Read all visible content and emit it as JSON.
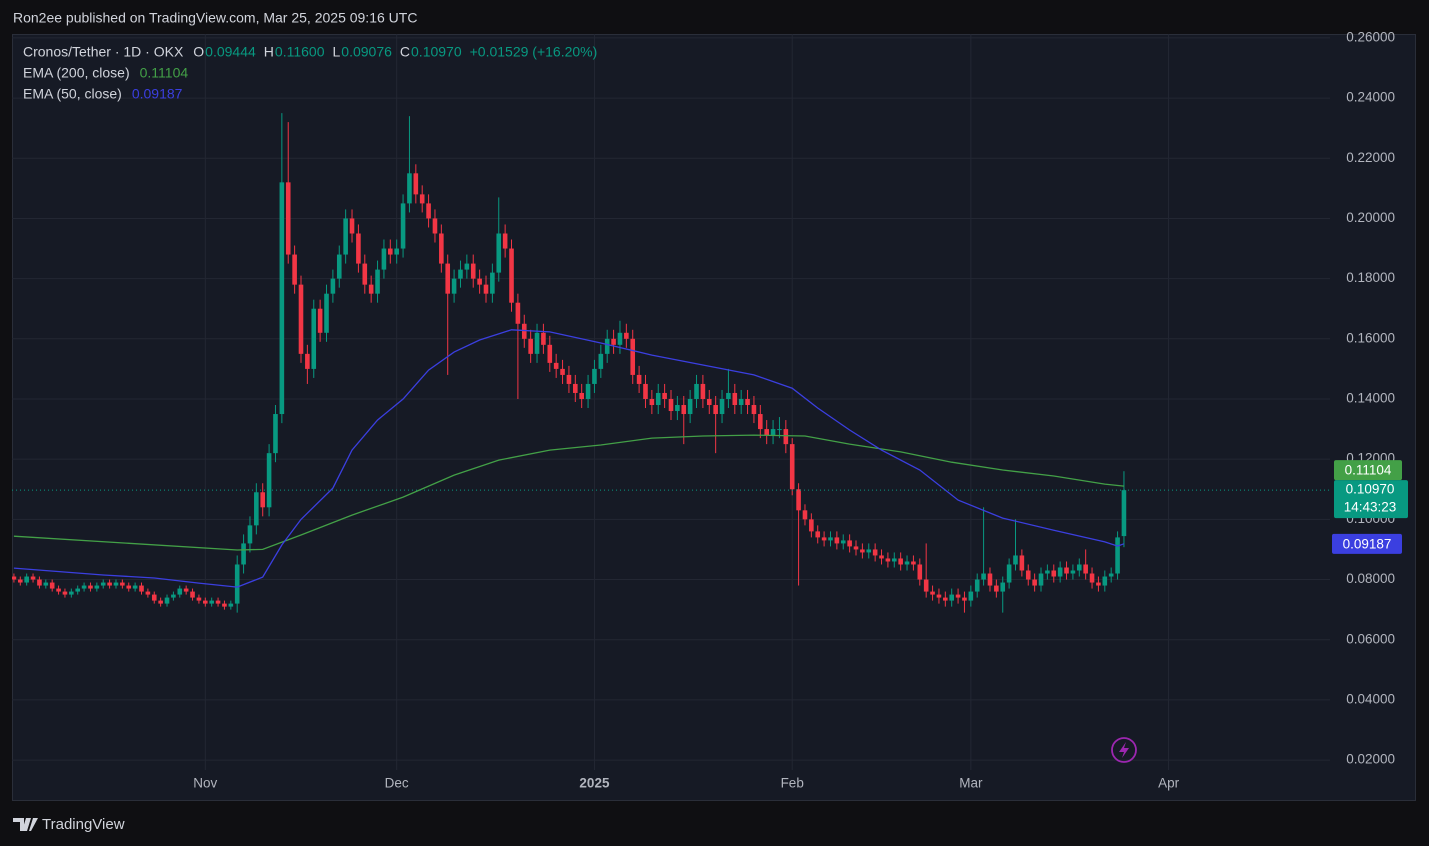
{
  "header": {
    "publisher": "Ron2ee published on TradingView.com, Mar 25, 2025 09:16 UTC"
  },
  "footer": {
    "brand": "TradingView"
  },
  "chart_data": {
    "type": "candlestick",
    "series": [
      {
        "name": "Cronos/Tether · 1D · OKX",
        "up_color": "#089981",
        "down_color": "#f23645",
        "open": [
          0.081,
          0.08,
          0.079,
          0.081,
          0.08,
          0.078,
          0.079,
          0.077,
          0.076,
          0.075,
          0.076,
          0.077,
          0.078,
          0.077,
          0.078,
          0.079,
          0.078,
          0.079,
          0.078,
          0.077,
          0.078,
          0.076,
          0.075,
          0.073,
          0.072,
          0.074,
          0.075,
          0.077,
          0.076,
          0.074,
          0.073,
          0.072,
          0.073,
          0.072,
          0.071,
          0.072,
          0.085,
          0.092,
          0.098,
          0.109,
          0.104,
          0.122,
          0.135,
          0.212,
          0.188,
          0.178,
          0.155,
          0.15,
          0.17,
          0.162,
          0.175,
          0.18,
          0.188,
          0.2,
          0.195,
          0.185,
          0.178,
          0.175,
          0.183,
          0.19,
          0.188,
          0.19,
          0.205,
          0.215,
          0.208,
          0.205,
          0.2,
          0.195,
          0.185,
          0.175,
          0.18,
          0.183,
          0.185,
          0.18,
          0.178,
          0.175,
          0.182,
          0.195,
          0.19,
          0.172,
          0.165,
          0.16,
          0.155,
          0.162,
          0.158,
          0.152,
          0.15,
          0.148,
          0.145,
          0.142,
          0.14,
          0.145,
          0.15,
          0.155,
          0.16,
          0.158,
          0.162,
          0.16,
          0.148,
          0.145,
          0.14,
          0.138,
          0.142,
          0.14,
          0.136,
          0.138,
          0.135,
          0.14,
          0.145,
          0.14,
          0.138,
          0.135,
          0.14,
          0.142,
          0.138,
          0.14,
          0.138,
          0.135,
          0.13,
          0.128,
          0.13,
          0.13,
          0.125,
          0.11,
          0.103,
          0.1,
          0.096,
          0.094,
          0.093,
          0.094,
          0.092,
          0.093,
          0.091,
          0.09,
          0.089,
          0.09,
          0.088,
          0.087,
          0.086,
          0.087,
          0.085,
          0.086,
          0.085,
          0.08,
          0.076,
          0.075,
          0.074,
          0.073,
          0.075,
          0.074,
          0.073,
          0.076,
          0.08,
          0.082,
          0.078,
          0.076,
          0.079,
          0.085,
          0.088,
          0.083,
          0.08,
          0.078,
          0.082,
          0.083,
          0.081,
          0.084,
          0.082,
          0.083,
          0.085,
          0.082,
          0.079,
          0.078,
          0.081,
          0.082,
          0.09444
        ],
        "high": [
          0.082,
          0.081,
          0.082,
          0.082,
          0.081,
          0.08,
          0.08,
          0.078,
          0.077,
          0.077,
          0.078,
          0.079,
          0.079,
          0.079,
          0.08,
          0.08,
          0.08,
          0.08,
          0.079,
          0.079,
          0.079,
          0.077,
          0.076,
          0.074,
          0.075,
          0.076,
          0.078,
          0.078,
          0.077,
          0.075,
          0.074,
          0.074,
          0.074,
          0.073,
          0.073,
          0.088,
          0.095,
          0.101,
          0.112,
          0.112,
          0.125,
          0.138,
          0.235,
          0.232,
          0.191,
          0.181,
          0.158,
          0.173,
          0.173,
          0.178,
          0.183,
          0.191,
          0.203,
          0.203,
          0.198,
          0.188,
          0.181,
          0.186,
          0.193,
          0.193,
          0.193,
          0.208,
          0.234,
          0.218,
          0.211,
          0.208,
          0.203,
          0.198,
          0.188,
          0.183,
          0.186,
          0.188,
          0.188,
          0.183,
          0.181,
          0.185,
          0.207,
          0.198,
          0.193,
          0.175,
          0.168,
          0.163,
          0.165,
          0.165,
          0.161,
          0.155,
          0.153,
          0.151,
          0.148,
          0.145,
          0.148,
          0.153,
          0.158,
          0.163,
          0.163,
          0.166,
          0.165,
          0.163,
          0.151,
          0.148,
          0.143,
          0.145,
          0.145,
          0.143,
          0.141,
          0.141,
          0.143,
          0.148,
          0.148,
          0.143,
          0.141,
          0.143,
          0.15,
          0.145,
          0.143,
          0.143,
          0.141,
          0.138,
          0.133,
          0.133,
          0.134,
          0.133,
          0.127,
          0.112,
          0.105,
          0.102,
          0.098,
          0.096,
          0.096,
          0.096,
          0.095,
          0.095,
          0.093,
          0.092,
          0.092,
          0.092,
          0.09,
          0.089,
          0.089,
          0.089,
          0.088,
          0.088,
          0.087,
          0.092,
          0.078,
          0.077,
          0.076,
          0.077,
          0.077,
          0.076,
          0.078,
          0.082,
          0.104,
          0.084,
          0.08,
          0.081,
          0.087,
          0.1,
          0.09,
          0.085,
          0.082,
          0.084,
          0.085,
          0.085,
          0.086,
          0.086,
          0.085,
          0.087,
          0.09,
          0.084,
          0.081,
          0.083,
          0.084,
          0.096,
          0.116
        ],
        "low": [
          0.079,
          0.078,
          0.078,
          0.079,
          0.077,
          0.077,
          0.076,
          0.075,
          0.074,
          0.074,
          0.075,
          0.076,
          0.076,
          0.076,
          0.077,
          0.077,
          0.077,
          0.077,
          0.076,
          0.076,
          0.075,
          0.074,
          0.072,
          0.071,
          0.071,
          0.073,
          0.074,
          0.075,
          0.073,
          0.072,
          0.071,
          0.071,
          0.071,
          0.07,
          0.07,
          0.069,
          0.082,
          0.089,
          0.095,
          0.101,
          0.101,
          0.119,
          0.132,
          0.185,
          0.175,
          0.152,
          0.145,
          0.147,
          0.159,
          0.159,
          0.172,
          0.177,
          0.185,
          0.192,
          0.182,
          0.175,
          0.172,
          0.172,
          0.18,
          0.185,
          0.185,
          0.187,
          0.202,
          0.205,
          0.202,
          0.197,
          0.192,
          0.182,
          0.148,
          0.172,
          0.177,
          0.18,
          0.177,
          0.175,
          0.172,
          0.172,
          0.179,
          0.187,
          0.169,
          0.14,
          0.157,
          0.152,
          0.152,
          0.155,
          0.149,
          0.147,
          0.145,
          0.142,
          0.139,
          0.137,
          0.137,
          0.142,
          0.147,
          0.152,
          0.155,
          0.155,
          0.157,
          0.145,
          0.142,
          0.137,
          0.135,
          0.135,
          0.137,
          0.133,
          0.133,
          0.125,
          0.132,
          0.137,
          0.137,
          0.135,
          0.122,
          0.132,
          0.137,
          0.135,
          0.135,
          0.135,
          0.132,
          0.127,
          0.125,
          0.125,
          0.127,
          0.122,
          0.108,
          0.078,
          0.098,
          0.094,
          0.092,
          0.091,
          0.091,
          0.09,
          0.09,
          0.089,
          0.088,
          0.087,
          0.087,
          0.086,
          0.085,
          0.084,
          0.084,
          0.083,
          0.083,
          0.083,
          0.078,
          0.074,
          0.073,
          0.072,
          0.071,
          0.071,
          0.072,
          0.069,
          0.071,
          0.074,
          0.078,
          0.076,
          0.074,
          0.069,
          0.077,
          0.083,
          0.081,
          0.078,
          0.076,
          0.076,
          0.08,
          0.079,
          0.079,
          0.08,
          0.08,
          0.081,
          0.08,
          0.077,
          0.076,
          0.076,
          0.079,
          0.08,
          0.09076
        ],
        "close": [
          0.08,
          0.079,
          0.081,
          0.08,
          0.078,
          0.079,
          0.077,
          0.076,
          0.075,
          0.076,
          0.077,
          0.078,
          0.077,
          0.078,
          0.079,
          0.078,
          0.079,
          0.078,
          0.077,
          0.078,
          0.076,
          0.075,
          0.073,
          0.072,
          0.074,
          0.075,
          0.077,
          0.076,
          0.074,
          0.073,
          0.072,
          0.073,
          0.072,
          0.071,
          0.072,
          0.085,
          0.092,
          0.098,
          0.109,
          0.104,
          0.122,
          0.135,
          0.212,
          0.188,
          0.178,
          0.155,
          0.15,
          0.17,
          0.162,
          0.175,
          0.18,
          0.188,
          0.2,
          0.195,
          0.185,
          0.178,
          0.175,
          0.183,
          0.19,
          0.188,
          0.19,
          0.205,
          0.215,
          0.208,
          0.205,
          0.2,
          0.195,
          0.185,
          0.175,
          0.18,
          0.183,
          0.185,
          0.18,
          0.178,
          0.175,
          0.182,
          0.195,
          0.19,
          0.172,
          0.165,
          0.16,
          0.155,
          0.162,
          0.158,
          0.152,
          0.15,
          0.148,
          0.145,
          0.142,
          0.14,
          0.145,
          0.15,
          0.155,
          0.16,
          0.158,
          0.162,
          0.16,
          0.148,
          0.145,
          0.14,
          0.138,
          0.142,
          0.14,
          0.136,
          0.138,
          0.135,
          0.14,
          0.145,
          0.14,
          0.138,
          0.135,
          0.14,
          0.142,
          0.138,
          0.14,
          0.138,
          0.135,
          0.13,
          0.128,
          0.13,
          0.13,
          0.125,
          0.11,
          0.103,
          0.1,
          0.096,
          0.094,
          0.093,
          0.094,
          0.092,
          0.093,
          0.091,
          0.09,
          0.089,
          0.09,
          0.088,
          0.087,
          0.086,
          0.087,
          0.085,
          0.086,
          0.085,
          0.08,
          0.076,
          0.075,
          0.074,
          0.073,
          0.075,
          0.074,
          0.073,
          0.076,
          0.08,
          0.082,
          0.078,
          0.076,
          0.079,
          0.085,
          0.088,
          0.083,
          0.08,
          0.078,
          0.082,
          0.083,
          0.081,
          0.084,
          0.082,
          0.083,
          0.085,
          0.082,
          0.079,
          0.078,
          0.081,
          0.082,
          0.094,
          0.1097
        ]
      }
    ],
    "ohlc_legend": [
      {
        "key": "O",
        "value": "0.09444"
      },
      {
        "key": "H",
        "value": "0.11600"
      },
      {
        "key": "L",
        "value": "0.09076"
      },
      {
        "key": "C",
        "value": "0.10970"
      }
    ],
    "change": "+0.01529 (+16.20%)",
    "last_price": {
      "label": "0.10970",
      "countdown": "14:43:23"
    },
    "overlays": [
      {
        "name": "EMA (200, close)",
        "color": "#43a047",
        "value_label": "0.11104",
        "x": [
          0,
          35,
          39,
          45,
          53,
          61,
          69,
          76,
          84,
          92,
          100,
          108,
          116,
          124,
          131,
          139,
          147,
          155,
          163,
          171,
          174
        ],
        "values": [
          0.0944,
          0.0898,
          0.09,
          0.0948,
          0.1014,
          0.1074,
          0.1147,
          0.1197,
          0.123,
          0.1247,
          0.127,
          0.1277,
          0.128,
          0.1277,
          0.125,
          0.1224,
          0.119,
          0.1164,
          0.1144,
          0.1117,
          0.11104
        ]
      },
      {
        "name": "EMA (50, close)",
        "color": "#3b3fe0",
        "value_label": "0.09187",
        "x": [
          0,
          14,
          22,
          29,
          35,
          39,
          42,
          45,
          50,
          53,
          57,
          61,
          65,
          69,
          73,
          78,
          84,
          92,
          100,
          108,
          116,
          122,
          126,
          131,
          136,
          142,
          148,
          155,
          163,
          171,
          173,
          174
        ],
        "values": [
          0.0838,
          0.0815,
          0.0805,
          0.0788,
          0.0775,
          0.0808,
          0.0915,
          0.1,
          0.1104,
          0.123,
          0.133,
          0.14,
          0.1496,
          0.1556,
          0.1596,
          0.163,
          0.1623,
          0.1586,
          0.1546,
          0.1513,
          0.148,
          0.1436,
          0.137,
          0.1297,
          0.123,
          0.1164,
          0.1064,
          0.1004,
          0.0964,
          0.0925,
          0.0911,
          0.09187
        ]
      }
    ],
    "xlim": [
      -0.3,
      206.3
    ],
    "xticks": [
      {
        "value": 30,
        "label": "Nov"
      },
      {
        "value": 60,
        "label": "Dec"
      },
      {
        "value": 91,
        "label": "2025"
      },
      {
        "value": 122,
        "label": "Feb"
      },
      {
        "value": 150,
        "label": "Mar"
      },
      {
        "value": 181,
        "label": "Apr"
      }
    ],
    "ylim": [
      0.0167,
      0.2613
    ],
    "yticks": [
      {
        "value": 0.02,
        "label": "0.02000"
      },
      {
        "value": 0.04,
        "label": "0.04000"
      },
      {
        "value": 0.06,
        "label": "0.06000"
      },
      {
        "value": 0.08,
        "label": "0.08000"
      },
      {
        "value": 0.1,
        "label": "0.10000"
      },
      {
        "value": 0.12,
        "label": "0.12000"
      },
      {
        "value": 0.14,
        "label": "0.14000"
      },
      {
        "value": 0.16,
        "label": "0.16000"
      },
      {
        "value": 0.18,
        "label": "0.18000"
      },
      {
        "value": 0.2,
        "label": "0.20000"
      },
      {
        "value": 0.22,
        "label": "0.22000"
      },
      {
        "value": 0.24,
        "label": "0.24000"
      },
      {
        "value": 0.26,
        "label": "0.26000"
      }
    ],
    "grid": true
  }
}
